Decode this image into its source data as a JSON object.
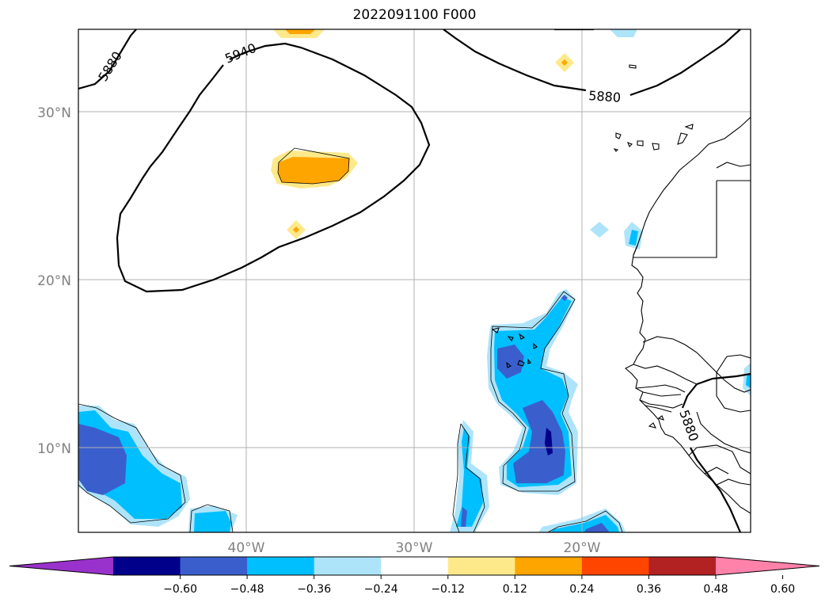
{
  "map": {
    "title": "2022091100 F000",
    "lat_labels": [
      "30°N",
      "20°N",
      "10°N"
    ],
    "lon_labels": [
      "40°W",
      "30°W",
      "20°W"
    ],
    "contour_labels": [
      "5880",
      "5940",
      "5880",
      "5880"
    ],
    "colorbar": {
      "ticks": [
        "−0.60",
        "−0.48",
        "−0.36",
        "−0.24",
        "−0.12",
        "0.12",
        "0.24",
        "0.36",
        "0.48",
        "0.60"
      ],
      "colors": [
        "#9932cc",
        "#00008b",
        "#3a5fcd",
        "#00bfff",
        "#aee4fa",
        "#ffffff",
        "#fde98a",
        "#ffa500",
        "#ff4500",
        "#b22222",
        "#ff82ab"
      ]
    }
  }
}
